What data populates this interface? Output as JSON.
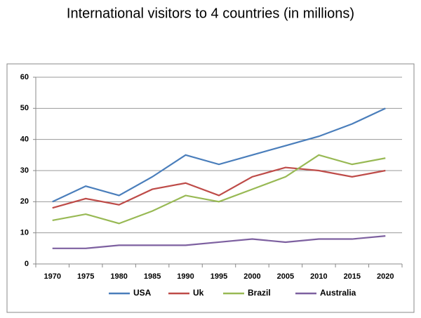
{
  "chart_data": {
    "type": "line",
    "title": "International visitors to 4 countries (in millions)",
    "categories": [
      "1970",
      "1975",
      "1980",
      "1985",
      "1990",
      "1995",
      "2000",
      "2005",
      "2010",
      "2015",
      "2020"
    ],
    "series": [
      {
        "name": "USA",
        "color": "#4a7ebb",
        "values": [
          20,
          25,
          22,
          28,
          35,
          32,
          35,
          38,
          41,
          45,
          50
        ]
      },
      {
        "name": "Uk",
        "color": "#be4b48",
        "values": [
          18,
          21,
          19,
          24,
          26,
          22,
          28,
          31,
          30,
          28,
          30
        ]
      },
      {
        "name": "Brazil",
        "color": "#98b954",
        "values": [
          14,
          16,
          13,
          17,
          22,
          20,
          24,
          28,
          35,
          32,
          34
        ]
      },
      {
        "name": "Australia",
        "color": "#7d60a0",
        "values": [
          5,
          5,
          6,
          6,
          6,
          7,
          8,
          7,
          8,
          8,
          9
        ]
      }
    ],
    "ylim": [
      0,
      60
    ],
    "yticks": [
      0,
      10,
      20,
      30,
      40,
      50,
      60
    ],
    "grid": true,
    "legend": "bottom"
  }
}
